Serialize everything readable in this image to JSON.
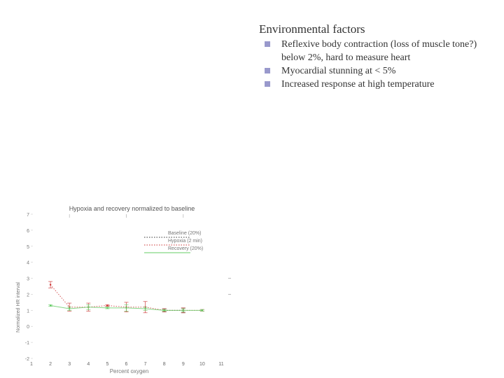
{
  "slide": {
    "title": "Environmental factors",
    "bullets": [
      "Reflexive body contraction (loss of muscle tone?) below 2%, hard to measure heart",
      "Myocardial stunning at < 5%",
      "Increased response at high temperature"
    ]
  },
  "chart_data": {
    "type": "line",
    "title": "Hypoxia and recovery normalized to baseline",
    "xlabel": "Percent oxygen",
    "ylabel": "Normalized HR interval",
    "xlim": [
      1,
      11
    ],
    "ylim": [
      -2,
      7
    ],
    "xticks": [
      1,
      2,
      3,
      4,
      5,
      6,
      7,
      8,
      9,
      10,
      11
    ],
    "yticks": [
      -2,
      -1,
      0,
      1,
      2,
      3,
      4,
      5,
      6,
      7
    ],
    "ytick_labels": [
      "-2",
      "-1",
      "0",
      "1",
      "2",
      "3",
      "4",
      "5",
      "6",
      "7"
    ],
    "legend_position": "upper-right",
    "grid": false,
    "series": [
      {
        "name": "Baseline (20%)",
        "color": "#333333",
        "style": "dotted",
        "x": [
          8,
          9
        ],
        "y": [
          1.0,
          1.0
        ],
        "err": [
          0.1,
          0.15
        ]
      },
      {
        "name": "Hypoxia (2 min)",
        "color": "#cc3333",
        "style": "dotted",
        "x": [
          2,
          3,
          4,
          5,
          6,
          7,
          8,
          9,
          10
        ],
        "y": [
          2.6,
          1.2,
          1.2,
          1.3,
          1.2,
          1.2,
          1.0,
          1.0,
          1.0
        ],
        "err": [
          0.2,
          0.25,
          0.25,
          0.05,
          0.3,
          0.35,
          0.1,
          0.15,
          0.05
        ]
      },
      {
        "name": "Recovery (20%)",
        "color": "#66cc66",
        "style": "solid",
        "x": [
          2,
          3,
          4,
          5,
          6,
          7,
          8,
          9,
          10
        ],
        "y": [
          1.3,
          1.1,
          1.2,
          1.15,
          1.15,
          1.1,
          1.0,
          1.0,
          1.0
        ],
        "err": [
          0.05,
          0.1,
          0.15,
          0.05,
          0.2,
          0.1,
          0.05,
          0.1,
          0.05
        ]
      }
    ]
  }
}
